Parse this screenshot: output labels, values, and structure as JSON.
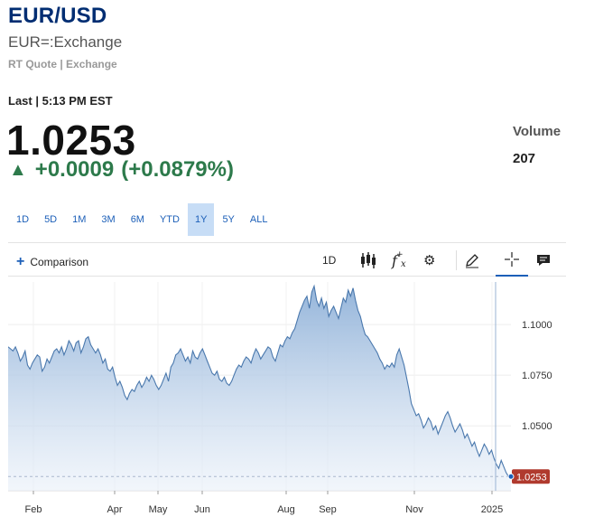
{
  "header": {
    "symbol": "EUR/USD",
    "subtitle": "EUR=:Exchange",
    "quote_source": "RT Quote | Exchange",
    "last_time": "Last | 5:13 PM EST"
  },
  "quote": {
    "price": "1.0253",
    "change": "+0.0009",
    "change_pct": "(+0.0879%)",
    "direction_icon": "triangle-up-icon",
    "change_color": "#2d7a4b",
    "volume_label": "Volume",
    "volume_value": "207"
  },
  "ranges": [
    "1D",
    "5D",
    "1M",
    "3M",
    "6M",
    "YTD",
    "1Y",
    "5Y",
    "ALL"
  ],
  "active_range": "1Y",
  "toolbar": {
    "comparison_label": "Comparison",
    "interval_label": "1D",
    "icons": [
      "candlestick-icon",
      "function-icon",
      "gear-icon",
      "pencil-icon",
      "crosshair-icon",
      "comment-icon"
    ],
    "accent_color": "#1c5fb8"
  },
  "chart_data": {
    "type": "area",
    "x_tick_labels": [
      "Feb",
      "Apr",
      "May",
      "Jun",
      "Aug",
      "Sep",
      "Nov",
      "2025"
    ],
    "y_tick_labels": [
      "1.1000",
      "1.0750",
      "1.0500"
    ],
    "ylim": [
      1.018,
      1.121
    ],
    "last_value_label": "1.0253",
    "grid": true,
    "line_color": "#4a78ad",
    "last_marker_color": "#b03a2e",
    "values": [
      1.089,
      1.088,
      1.087,
      1.089,
      1.086,
      1.082,
      1.084,
      1.087,
      1.08,
      1.078,
      1.081,
      1.083,
      1.085,
      1.084,
      1.077,
      1.079,
      1.083,
      1.081,
      1.084,
      1.087,
      1.088,
      1.086,
      1.089,
      1.085,
      1.088,
      1.092,
      1.09,
      1.087,
      1.091,
      1.092,
      1.086,
      1.089,
      1.093,
      1.094,
      1.09,
      1.088,
      1.086,
      1.088,
      1.085,
      1.081,
      1.083,
      1.078,
      1.077,
      1.079,
      1.074,
      1.07,
      1.072,
      1.069,
      1.065,
      1.063,
      1.066,
      1.068,
      1.067,
      1.07,
      1.072,
      1.069,
      1.071,
      1.074,
      1.072,
      1.075,
      1.073,
      1.07,
      1.068,
      1.07,
      1.073,
      1.076,
      1.072,
      1.079,
      1.081,
      1.085,
      1.086,
      1.088,
      1.085,
      1.082,
      1.084,
      1.081,
      1.087,
      1.084,
      1.083,
      1.086,
      1.088,
      1.085,
      1.082,
      1.079,
      1.076,
      1.075,
      1.077,
      1.073,
      1.072,
      1.074,
      1.071,
      1.07,
      1.072,
      1.075,
      1.078,
      1.08,
      1.079,
      1.082,
      1.084,
      1.083,
      1.081,
      1.085,
      1.088,
      1.086,
      1.083,
      1.085,
      1.087,
      1.089,
      1.088,
      1.084,
      1.082,
      1.086,
      1.09,
      1.089,
      1.092,
      1.094,
      1.093,
      1.096,
      1.098,
      1.102,
      1.106,
      1.109,
      1.112,
      1.114,
      1.108,
      1.116,
      1.119,
      1.112,
      1.109,
      1.113,
      1.108,
      1.111,
      1.104,
      1.107,
      1.109,
      1.106,
      1.103,
      1.108,
      1.113,
      1.111,
      1.117,
      1.114,
      1.118,
      1.112,
      1.107,
      1.104,
      1.099,
      1.095,
      1.094,
      1.092,
      1.09,
      1.088,
      1.086,
      1.083,
      1.081,
      1.078,
      1.08,
      1.079,
      1.081,
      1.079,
      1.085,
      1.088,
      1.084,
      1.08,
      1.074,
      1.068,
      1.061,
      1.058,
      1.055,
      1.056,
      1.053,
      1.049,
      1.051,
      1.054,
      1.052,
      1.048,
      1.05,
      1.046,
      1.049,
      1.052,
      1.055,
      1.057,
      1.054,
      1.05,
      1.047,
      1.049,
      1.051,
      1.048,
      1.044,
      1.046,
      1.043,
      1.04,
      1.042,
      1.038,
      1.035,
      1.038,
      1.041,
      1.039,
      1.036,
      1.038,
      1.034,
      1.031,
      1.029,
      1.033,
      1.03,
      1.027,
      1.025,
      1.025
    ]
  }
}
